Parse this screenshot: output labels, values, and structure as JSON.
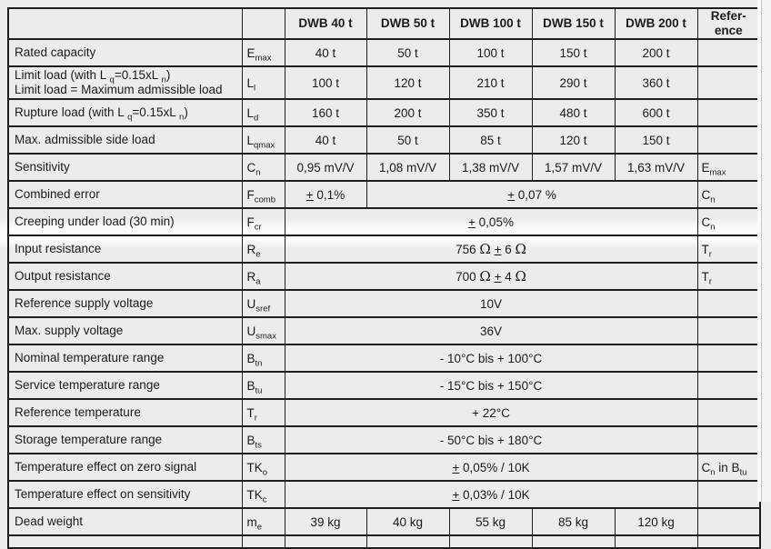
{
  "colors": {
    "page_background": "#ececeb",
    "table_border": "#1d1d1d",
    "text": "#1b1b1b",
    "page_break_band": "#ffffff",
    "edge_strip": "#f4f4f3"
  },
  "table": {
    "columns": [
      "",
      "",
      "DWB 40 t",
      "DWB 50 t",
      "DWB 100 t",
      "DWB 150 t",
      "DWB 200 t",
      "Refer-<br>ence"
    ],
    "rows": [
      {
        "label": "Rated capacity",
        "symbol": "E<sub>max</sub>",
        "cells": [
          {
            "text": "40 t",
            "span": 1
          },
          {
            "text": "50 t",
            "span": 1
          },
          {
            "text": "100 t",
            "span": 1
          },
          {
            "text": "150 t",
            "span": 1
          },
          {
            "text": "200 t",
            "span": 1
          }
        ],
        "ref": ""
      },
      {
        "label": "Limit load (with L <sub>q</sub>=0.15xL <sub>n</sub>)<br>Limit load = Maximum admissible load",
        "symbol": "L<sub>l</sub>",
        "cells": [
          {
            "text": "100 t",
            "span": 1
          },
          {
            "text": "120 t",
            "span": 1
          },
          {
            "text": "210 t",
            "span": 1
          },
          {
            "text": "290 t",
            "span": 1
          },
          {
            "text": "360 t",
            "span": 1
          }
        ],
        "ref": ""
      },
      {
        "label": "Rupture load (with L <sub>q</sub>=0.15xL <sub>n</sub>)",
        "symbol": "L<sub>d</sub>",
        "cells": [
          {
            "text": "160 t",
            "span": 1
          },
          {
            "text": "200 t",
            "span": 1
          },
          {
            "text": "350 t",
            "span": 1
          },
          {
            "text": "480 t",
            "span": 1
          },
          {
            "text": "600 t",
            "span": 1
          }
        ],
        "ref": ""
      },
      {
        "label": "Max. admissible side load",
        "symbol": "L<sub>qmax</sub>",
        "cells": [
          {
            "text": "40 t",
            "span": 1
          },
          {
            "text": "50 t",
            "span": 1
          },
          {
            "text": "85 t",
            "span": 1
          },
          {
            "text": "120 t",
            "span": 1
          },
          {
            "text": "150 t",
            "span": 1
          }
        ],
        "ref": ""
      },
      {
        "label": "Sensitivity",
        "symbol": "C<sub>n</sub>",
        "cells": [
          {
            "text": "0,95 mV/V",
            "span": 1
          },
          {
            "text": "1,08 mV/V",
            "span": 1
          },
          {
            "text": "1,38 mV/V",
            "span": 1
          },
          {
            "text": "1,57 mV/V",
            "span": 1
          },
          {
            "text": "1,63 mV/V",
            "span": 1
          }
        ],
        "ref": "E<sub>max</sub>"
      },
      {
        "label": "Combined error",
        "symbol": "F<sub>comb</sub>",
        "cells": [
          {
            "text": "<u>+</u> 0,1%",
            "span": 1
          },
          {
            "text": "<u>+</u> 0,07 %",
            "span": 4
          }
        ],
        "ref": "C<sub>n</sub>"
      },
      {
        "label": "Creeping under load (30 min)",
        "symbol": "F<sub>cr</sub>",
        "cells": [
          {
            "text": "<u>+</u> 0,05%",
            "span": 5
          }
        ],
        "ref": "C<sub>n</sub>"
      },
      {
        "label": "Input resistance",
        "symbol": "R<sub>e</sub>",
        "cells": [
          {
            "text": "756 <i>Ω</i> <u>+</u> 6 <i>Ω</i>",
            "span": 5
          }
        ],
        "ref": "T<sub>r</sub>"
      },
      {
        "label": "Output resistance",
        "symbol": "R<sub>a</sub>",
        "cells": [
          {
            "text": "700 <i>Ω</i> <u>+</u> 4 <i>Ω</i>",
            "span": 5
          }
        ],
        "ref": "T<sub>r</sub>"
      },
      {
        "label": "Reference supply voltage",
        "symbol": "U<sub>sref</sub>",
        "cells": [
          {
            "text": "10V",
            "span": 5
          }
        ],
        "ref": ""
      },
      {
        "label": "Max. supply voltage",
        "symbol": "U<sub>smax</sub>",
        "cells": [
          {
            "text": "36V",
            "span": 5
          }
        ],
        "ref": ""
      },
      {
        "label": "Nominal temperature range",
        "symbol": "B<sub>tn</sub>",
        "cells": [
          {
            "text": "- 10°C bis + 100°C",
            "span": 5
          }
        ],
        "ref": ""
      },
      {
        "label": "Service temperature range",
        "symbol": "B<sub>tu</sub>",
        "cells": [
          {
            "text": "- 15°C bis + 150°C",
            "span": 5
          }
        ],
        "ref": ""
      },
      {
        "label": "Reference temperature",
        "symbol": "T<sub>r</sub>",
        "cells": [
          {
            "text": "+ 22°C",
            "span": 5
          }
        ],
        "ref": ""
      },
      {
        "label": "Storage temperature range",
        "symbol": "B<sub>ts</sub>",
        "cells": [
          {
            "text": "- 50°C bis + 180°C",
            "span": 5
          }
        ],
        "ref": ""
      },
      {
        "label": "Temperature effect on zero signal",
        "symbol": "TK<sub>o</sub>",
        "cells": [
          {
            "text": "<u>+</u> 0,05% / 10K",
            "span": 5
          }
        ],
        "ref": "C<sub>n</sub> in B<sub>tu</sub>"
      },
      {
        "label": "Temperature effect on sensitivity",
        "symbol": "TK<sub>c</sub>",
        "cells": [
          {
            "text": "<u>+</u> 0,03% / 10K",
            "span": 5
          }
        ],
        "ref": ""
      },
      {
        "label": "Dead weight",
        "symbol": "m<sub>e</sub>",
        "cells": [
          {
            "text": "39 kg",
            "span": 1
          },
          {
            "text": "40 kg",
            "span": 1
          },
          {
            "text": "55 kg",
            "span": 1
          },
          {
            "text": "85 kg",
            "span": 1
          },
          {
            "text": "120 kg",
            "span": 1
          }
        ],
        "ref": ""
      },
      {
        "label": "",
        "symbol": "",
        "cells": [
          {
            "text": "",
            "span": 1
          },
          {
            "text": "",
            "span": 1
          },
          {
            "text": "",
            "span": 1
          },
          {
            "text": "",
            "span": 1
          },
          {
            "text": "",
            "span": 1
          }
        ],
        "ref": "",
        "partial": true
      }
    ]
  }
}
